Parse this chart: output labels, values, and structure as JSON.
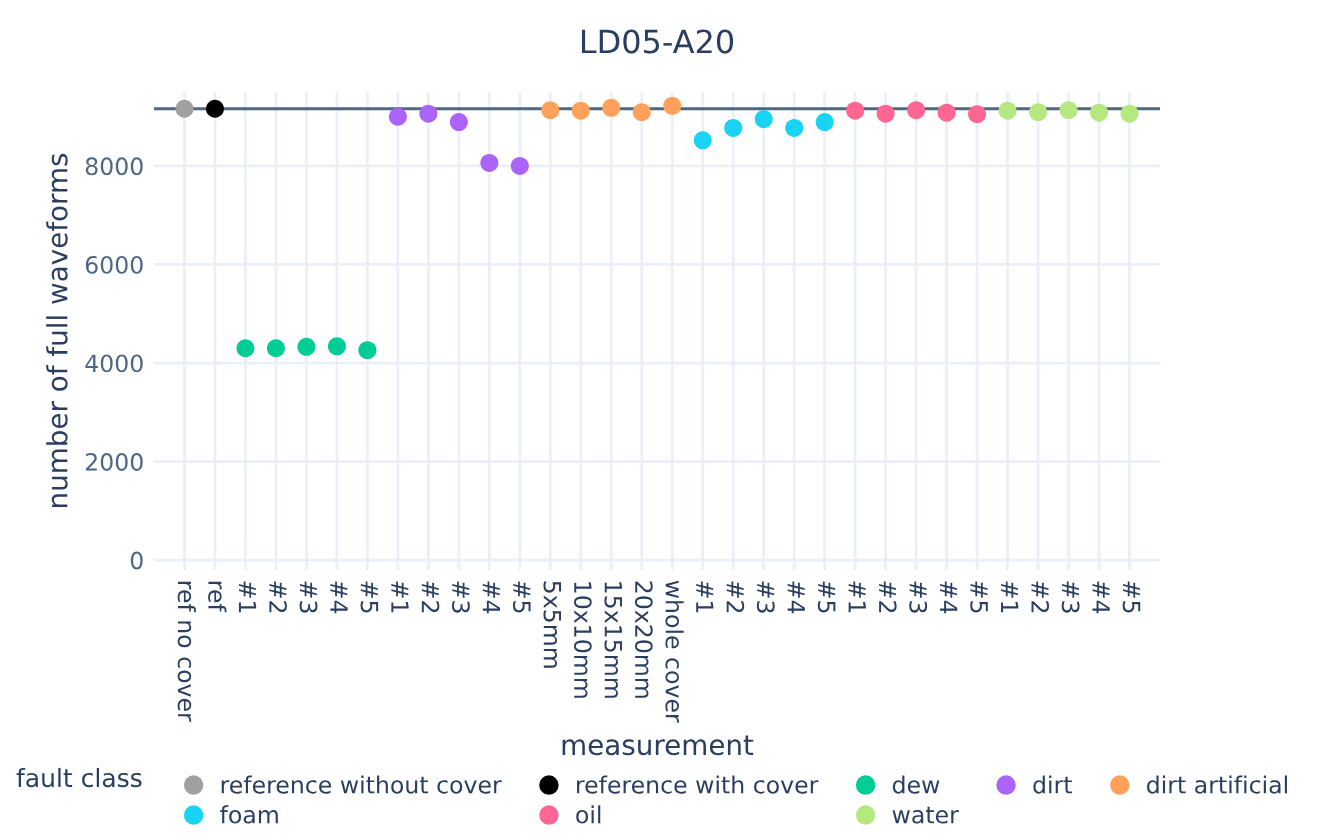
{
  "chart_data": {
    "type": "scatter",
    "title": "LD05-A20",
    "xlabel": "measurement",
    "ylabel": "number of full waveforms",
    "legend_title": "fault class",
    "legend": "bottom",
    "grid": true,
    "marker": "circle",
    "categories": [
      "ref no cover",
      "ref",
      "#1",
      "#2",
      "#3",
      "#4",
      "#5",
      "#1",
      "#2",
      "#3",
      "#4",
      "#5",
      "5x5mm",
      "10x10mm",
      "15x15mm",
      "20x20mm",
      "whole cover",
      "#1",
      "#2",
      "#3",
      "#4",
      "#5",
      "#1",
      "#2",
      "#3",
      "#4",
      "#5",
      "#1",
      "#2",
      "#3",
      "#4",
      "#5"
    ],
    "ylim": [
      -200,
      9500
    ],
    "yticks": [
      0,
      2000,
      4000,
      6000,
      8000
    ],
    "ref_lines": [
      {
        "axis": "y",
        "value": 9160,
        "color": "#506784"
      }
    ],
    "series": [
      {
        "name": "reference without cover",
        "color": "#a0a0a0",
        "values": [
          9160,
          null,
          null,
          null,
          null,
          null,
          null,
          null,
          null,
          null,
          null,
          null,
          null,
          null,
          null,
          null,
          null,
          null,
          null,
          null,
          null,
          null,
          null,
          null,
          null,
          null,
          null,
          null,
          null,
          null,
          null,
          null
        ]
      },
      {
        "name": "reference with cover",
        "color": "#000000",
        "values": [
          null,
          9160,
          null,
          null,
          null,
          null,
          null,
          null,
          null,
          null,
          null,
          null,
          null,
          null,
          null,
          null,
          null,
          null,
          null,
          null,
          null,
          null,
          null,
          null,
          null,
          null,
          null,
          null,
          null,
          null,
          null,
          null
        ]
      },
      {
        "name": "dew",
        "color": "#00cc96",
        "values": [
          null,
          null,
          4300,
          4300,
          4330,
          4340,
          4260,
          null,
          null,
          null,
          null,
          null,
          null,
          null,
          null,
          null,
          null,
          null,
          null,
          null,
          null,
          null,
          null,
          null,
          null,
          null,
          null,
          null,
          null,
          null,
          null,
          null
        ]
      },
      {
        "name": "dirt",
        "color": "#ab63fa",
        "values": [
          null,
          null,
          null,
          null,
          null,
          null,
          null,
          9000,
          9060,
          8890,
          8060,
          8000,
          null,
          null,
          null,
          null,
          null,
          null,
          null,
          null,
          null,
          null,
          null,
          null,
          null,
          null,
          null,
          null,
          null,
          null,
          null,
          null
        ]
      },
      {
        "name": "dirt artificial",
        "color": "#ffa15a",
        "values": [
          null,
          null,
          null,
          null,
          null,
          null,
          null,
          null,
          null,
          null,
          null,
          null,
          9130,
          9120,
          9180,
          9090,
          9220,
          null,
          null,
          null,
          null,
          null,
          null,
          null,
          null,
          null,
          null,
          null,
          null,
          null,
          null,
          null
        ]
      },
      {
        "name": "foam",
        "color": "#19d3f3",
        "values": [
          null,
          null,
          null,
          null,
          null,
          null,
          null,
          null,
          null,
          null,
          null,
          null,
          null,
          null,
          null,
          null,
          null,
          8520,
          8770,
          8950,
          8770,
          8890,
          null,
          null,
          null,
          null,
          null,
          null,
          null,
          null,
          null,
          null
        ]
      },
      {
        "name": "oil",
        "color": "#ff6692",
        "values": [
          null,
          null,
          null,
          null,
          null,
          null,
          null,
          null,
          null,
          null,
          null,
          null,
          null,
          null,
          null,
          null,
          null,
          null,
          null,
          null,
          null,
          null,
          9120,
          9060,
          9130,
          9080,
          9050,
          null,
          null,
          null,
          null,
          null
        ]
      },
      {
        "name": "water",
        "color": "#b6e880",
        "values": [
          null,
          null,
          null,
          null,
          null,
          null,
          null,
          null,
          null,
          null,
          null,
          null,
          null,
          null,
          null,
          null,
          null,
          null,
          null,
          null,
          null,
          null,
          null,
          null,
          null,
          null,
          null,
          9120,
          9090,
          9130,
          9080,
          9060
        ]
      }
    ]
  }
}
